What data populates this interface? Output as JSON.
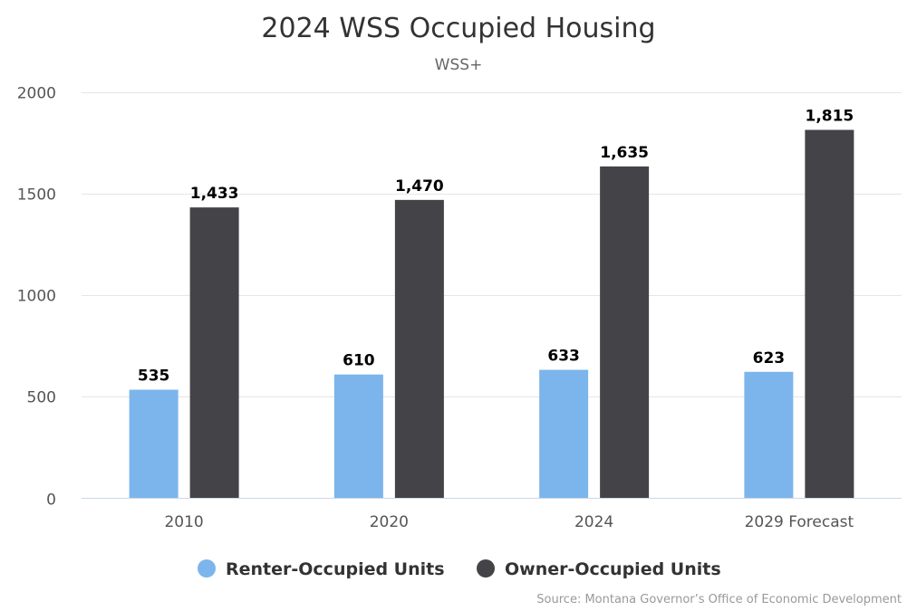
{
  "chart_data": {
    "type": "bar",
    "title": "2024 WSS Occupied Housing",
    "subtitle": "WSS+",
    "categories": [
      "2010",
      "2020",
      "2024",
      "2029 Forecast"
    ],
    "series": [
      {
        "name": "Renter-Occupied Units",
        "color": "#7cb5ec",
        "values": [
          535,
          610,
          633,
          623
        ],
        "labels": [
          "535",
          "610",
          "633",
          "623"
        ]
      },
      {
        "name": "Owner-Occupied Units",
        "color": "#434348",
        "values": [
          1433,
          1470,
          1635,
          1815
        ],
        "labels": [
          "1,433",
          "1,470",
          "1,635",
          "1,815"
        ]
      }
    ],
    "ylim": [
      0,
      2000
    ],
    "yticks": [
      "0",
      "500",
      "1000",
      "1500",
      "2000"
    ],
    "grid": true,
    "legend": "bottom-center",
    "credits": "Source: Montana Governor’s Office of Economic Development"
  }
}
